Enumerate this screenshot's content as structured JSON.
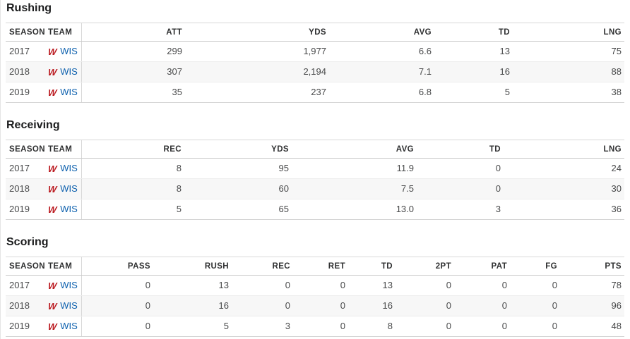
{
  "colors": {
    "link_blue": "#0b5fad",
    "logo_red": "#bb1b21",
    "row_alt_bg": "#f7f7f7",
    "border_row": "#ededed",
    "border_header": "#c9c9c9",
    "border_table": "#d8d8d8",
    "title_text": "#1b1c1d",
    "header_text": "#2f3031",
    "cell_text": "#48494a"
  },
  "icons": {
    "team_logo": "wisconsin-motion-w-icon",
    "team_logo_glyph": "W"
  },
  "tables": [
    {
      "title": "Rushing",
      "columns": [
        "SEASON",
        "TEAM",
        "ATT",
        "YDS",
        "AVG",
        "TD",
        "LNG"
      ],
      "rows": [
        {
          "season": "2017",
          "team": "WIS",
          "stats": [
            "299",
            "1,977",
            "6.6",
            "13",
            "75"
          ]
        },
        {
          "season": "2018",
          "team": "WIS",
          "stats": [
            "307",
            "2,194",
            "7.1",
            "16",
            "88"
          ]
        },
        {
          "season": "2019",
          "team": "WIS",
          "stats": [
            "35",
            "237",
            "6.8",
            "5",
            "38"
          ]
        }
      ]
    },
    {
      "title": "Receiving",
      "columns": [
        "SEASON",
        "TEAM",
        "REC",
        "YDS",
        "AVG",
        "TD",
        "LNG"
      ],
      "rows": [
        {
          "season": "2017",
          "team": "WIS",
          "stats": [
            "8",
            "95",
            "11.9",
            "0",
            "24"
          ]
        },
        {
          "season": "2018",
          "team": "WIS",
          "stats": [
            "8",
            "60",
            "7.5",
            "0",
            "30"
          ]
        },
        {
          "season": "2019",
          "team": "WIS",
          "stats": [
            "5",
            "65",
            "13.0",
            "3",
            "36"
          ]
        }
      ]
    },
    {
      "title": "Scoring",
      "columns": [
        "SEASON",
        "TEAM",
        "PASS",
        "RUSH",
        "REC",
        "RET",
        "TD",
        "2PT",
        "PAT",
        "FG",
        "PTS"
      ],
      "rows": [
        {
          "season": "2017",
          "team": "WIS",
          "stats": [
            "0",
            "13",
            "0",
            "0",
            "13",
            "0",
            "0",
            "0",
            "78"
          ]
        },
        {
          "season": "2018",
          "team": "WIS",
          "stats": [
            "0",
            "16",
            "0",
            "0",
            "16",
            "0",
            "0",
            "0",
            "96"
          ]
        },
        {
          "season": "2019",
          "team": "WIS",
          "stats": [
            "0",
            "5",
            "3",
            "0",
            "8",
            "0",
            "0",
            "0",
            "48"
          ]
        }
      ]
    }
  ]
}
